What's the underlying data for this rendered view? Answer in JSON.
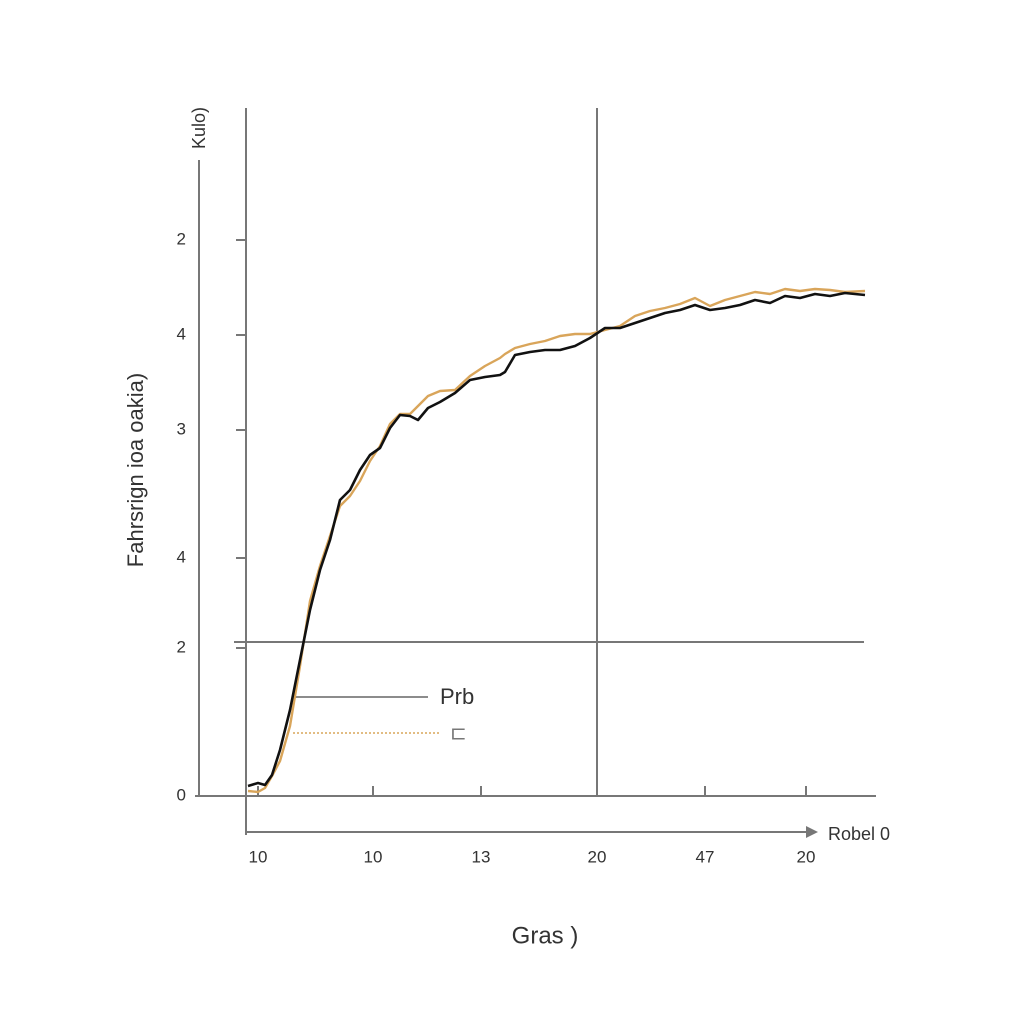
{
  "chart_data": {
    "type": "line",
    "y_top_label": "Kulo)",
    "ylabel": "Fahrsrign ioa oakia)",
    "xlabel": "Gras )",
    "x_arrow_label": "Robel 0",
    "xlim": [
      0,
      63
    ],
    "ylim": [
      0,
      6.4
    ],
    "xticks": [
      {
        "value": 1.2,
        "label": "10"
      },
      {
        "value": 12.7,
        "label": "10"
      },
      {
        "value": 23.5,
        "label": "13"
      },
      {
        "value": 35.1,
        "label": "20"
      },
      {
        "value": 45.9,
        "label": "47"
      },
      {
        "value": 56,
        "label": "20"
      }
    ],
    "yticks": [
      0,
      {
        "value": 1.48,
        "label": "2"
      },
      {
        "value": 2.38,
        "label": "4"
      },
      {
        "value": 3.66,
        "label": "3"
      },
      {
        "value": 4.61,
        "label": "4"
      },
      {
        "value": 5.56,
        "label": "2"
      }
    ],
    "x": [
      0.2,
      1.2,
      1.9,
      2.6,
      3.4,
      4.4,
      5.4,
      6.4,
      7.4,
      8.4,
      9.4,
      10.4,
      11.4,
      12.4,
      13.4,
      14.4,
      15.4,
      16.4,
      17.2,
      18.2,
      19.4,
      20.9,
      22.4,
      23.9,
      25.4,
      25.9,
      26.9,
      28.4,
      29.9,
      31.4,
      32.9,
      34.4,
      35.9,
      37.4,
      38.9,
      40.4,
      41.9,
      43.4,
      44.9,
      46.4,
      47.9,
      49.4,
      50.9,
      52.4,
      53.9,
      55.4,
      56.9,
      58.4,
      59.9,
      61.9
    ],
    "series": [
      {
        "name": "Prb",
        "color": "#111111",
        "values": [
          0.1,
          0.13,
          0.11,
          0.21,
          0.46,
          0.86,
          1.36,
          1.86,
          2.26,
          2.56,
          2.96,
          3.06,
          3.26,
          3.41,
          3.48,
          3.68,
          3.81,
          3.8,
          3.76,
          3.88,
          3.94,
          4.03,
          4.16,
          4.19,
          4.21,
          4.24,
          4.41,
          4.44,
          4.46,
          4.46,
          4.5,
          4.58,
          4.68,
          4.68,
          4.73,
          4.78,
          4.83,
          4.86,
          4.91,
          4.86,
          4.88,
          4.91,
          4.96,
          4.93,
          5.0,
          4.98,
          5.02,
          5.0,
          5.03,
          5.01
        ]
      },
      {
        "name": "⊏",
        "color": "#d9a55a",
        "values": [
          0.05,
          0.04,
          0.08,
          0.2,
          0.35,
          0.7,
          1.3,
          1.95,
          2.3,
          2.6,
          2.9,
          3.0,
          3.15,
          3.35,
          3.5,
          3.72,
          3.82,
          3.82,
          3.9,
          4.0,
          4.05,
          4.06,
          4.2,
          4.3,
          4.38,
          4.42,
          4.48,
          4.52,
          4.55,
          4.6,
          4.62,
          4.62,
          4.66,
          4.7,
          4.8,
          4.85,
          4.88,
          4.92,
          4.98,
          4.9,
          4.96,
          5.0,
          5.04,
          5.02,
          5.07,
          5.05,
          5.07,
          5.06,
          5.04,
          5.05
        ]
      }
    ]
  }
}
